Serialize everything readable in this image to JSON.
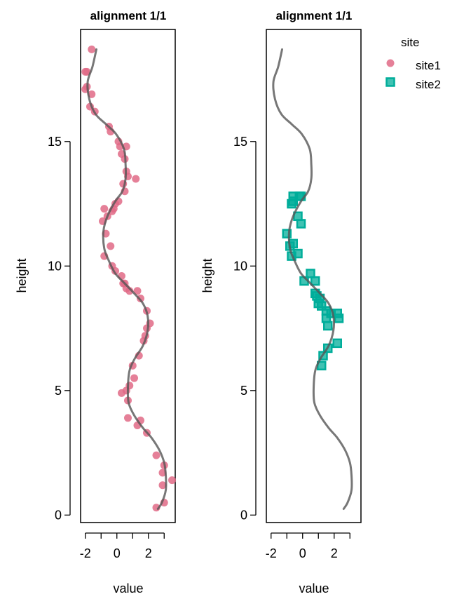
{
  "colors": {
    "site1": "#E16A86",
    "site2": "#00AD9A",
    "curve": "#555555"
  },
  "chart_data": [
    {
      "type": "scatter",
      "title": "alignment 1/1",
      "xlabel": "value",
      "ylabel": "height",
      "xlim": [
        -2.3,
        3.7
      ],
      "ylim": [
        -0.3,
        19.5
      ],
      "xticks": [
        -2,
        -1,
        0,
        1,
        2,
        3
      ],
      "xticklabels": [
        "-2",
        "",
        "0",
        "",
        "2",
        ""
      ],
      "yticks": [
        0,
        5,
        10,
        15
      ],
      "yticklabels": [
        "0",
        "5",
        "10",
        "15"
      ],
      "series": [
        {
          "name": "site1",
          "marker": "circle",
          "points": [
            [
              -1.6,
              18.7
            ],
            [
              -1.9,
              17.8
            ],
            [
              -2.0,
              17.8
            ],
            [
              -1.9,
              17.2
            ],
            [
              -2.0,
              17.1
            ],
            [
              -1.6,
              16.9
            ],
            [
              -1.7,
              16.4
            ],
            [
              -1.4,
              16.2
            ],
            [
              -0.5,
              15.6
            ],
            [
              -0.4,
              15.4
            ],
            [
              0.1,
              15.0
            ],
            [
              0.2,
              14.8
            ],
            [
              0.6,
              14.8
            ],
            [
              0.3,
              14.5
            ],
            [
              0.5,
              14.3
            ],
            [
              0.6,
              13.8
            ],
            [
              0.7,
              13.6
            ],
            [
              1.2,
              13.5
            ],
            [
              0.4,
              13.3
            ],
            [
              0.5,
              13.0
            ],
            [
              0.1,
              12.6
            ],
            [
              -0.1,
              12.5
            ],
            [
              -0.2,
              12.3
            ],
            [
              -0.8,
              12.3
            ],
            [
              -0.3,
              12.2
            ],
            [
              -0.6,
              12.0
            ],
            [
              -0.9,
              11.8
            ],
            [
              -0.7,
              11.3
            ],
            [
              -0.4,
              10.8
            ],
            [
              -0.8,
              10.4
            ],
            [
              -0.3,
              10.0
            ],
            [
              -0.1,
              9.8
            ],
            [
              0.3,
              9.6
            ],
            [
              0.4,
              9.3
            ],
            [
              0.5,
              9.3
            ],
            [
              0.6,
              9.1
            ],
            [
              0.8,
              9.0
            ],
            [
              1.3,
              9.0
            ],
            [
              1.5,
              8.7
            ],
            [
              1.9,
              8.2
            ],
            [
              2.1,
              7.7
            ],
            [
              1.9,
              7.5
            ],
            [
              1.8,
              7.2
            ],
            [
              1.7,
              7.0
            ],
            [
              1.4,
              6.4
            ],
            [
              1.0,
              6.0
            ],
            [
              1.1,
              5.5
            ],
            [
              0.8,
              5.2
            ],
            [
              0.6,
              5.0
            ],
            [
              0.3,
              4.9
            ],
            [
              0.7,
              4.6
            ],
            [
              1.5,
              3.8
            ],
            [
              1.3,
              3.6
            ],
            [
              0.7,
              3.9
            ],
            [
              1.9,
              3.3
            ],
            [
              2.5,
              2.4
            ],
            [
              3.0,
              2.0
            ],
            [
              2.9,
              1.7
            ],
            [
              3.5,
              1.4
            ],
            [
              2.9,
              1.2
            ],
            [
              3.0,
              0.5
            ],
            [
              2.5,
              0.3
            ]
          ]
        }
      ],
      "curve": [
        [
          -1.3,
          18.7
        ],
        [
          -1.55,
          18.0
        ],
        [
          -1.85,
          17.4
        ],
        [
          -1.75,
          16.7
        ],
        [
          -1.35,
          16.1
        ],
        [
          -0.7,
          15.7
        ],
        [
          -0.05,
          15.3
        ],
        [
          0.45,
          14.7
        ],
        [
          0.55,
          14.1
        ],
        [
          0.55,
          13.5
        ],
        [
          0.35,
          13.0
        ],
        [
          -0.1,
          12.6
        ],
        [
          -0.6,
          12.0
        ],
        [
          -0.85,
          11.4
        ],
        [
          -0.8,
          10.7
        ],
        [
          -0.5,
          10.2
        ],
        [
          -0.1,
          9.7
        ],
        [
          0.5,
          9.3
        ],
        [
          1.1,
          8.9
        ],
        [
          1.65,
          8.5
        ],
        [
          1.95,
          8.0
        ],
        [
          1.95,
          7.4
        ],
        [
          1.65,
          6.8
        ],
        [
          1.15,
          6.3
        ],
        [
          0.8,
          5.8
        ],
        [
          0.7,
          5.1
        ],
        [
          0.75,
          4.5
        ],
        [
          1.1,
          4.0
        ],
        [
          1.65,
          3.5
        ],
        [
          2.2,
          3.1
        ],
        [
          2.7,
          2.6
        ],
        [
          3.0,
          2.1
        ],
        [
          3.1,
          1.6
        ],
        [
          3.1,
          1.0
        ],
        [
          2.85,
          0.5
        ],
        [
          2.6,
          0.25
        ]
      ]
    },
    {
      "type": "scatter",
      "title": "alignment 1/1",
      "xlabel": "value",
      "ylabel": "height",
      "xlim": [
        -2.3,
        3.7
      ],
      "ylim": [
        -0.3,
        19.5
      ],
      "xticks": [
        -2,
        -1,
        0,
        1,
        2,
        3
      ],
      "xticklabels": [
        "-2",
        "",
        "0",
        "",
        "2",
        ""
      ],
      "yticks": [
        0,
        5,
        10,
        15
      ],
      "yticklabels": [
        "0",
        "5",
        "10",
        "15"
      ],
      "series": [
        {
          "name": "site2",
          "marker": "square",
          "points": [
            [
              -0.6,
              12.8
            ],
            [
              -0.2,
              12.8
            ],
            [
              -0.1,
              12.8
            ],
            [
              -0.6,
              12.6
            ],
            [
              -0.7,
              12.5
            ],
            [
              -0.3,
              12.0
            ],
            [
              -0.1,
              11.7
            ],
            [
              -1.0,
              11.3
            ],
            [
              -0.6,
              10.9
            ],
            [
              -0.8,
              10.8
            ],
            [
              -0.3,
              10.5
            ],
            [
              -0.7,
              10.4
            ],
            [
              0.5,
              9.7
            ],
            [
              0.8,
              9.4
            ],
            [
              0.1,
              9.4
            ],
            [
              0.8,
              8.9
            ],
            [
              0.9,
              8.8
            ],
            [
              1.1,
              8.7
            ],
            [
              1.0,
              8.5
            ],
            [
              1.2,
              8.4
            ],
            [
              1.5,
              8.2
            ],
            [
              2.2,
              8.1
            ],
            [
              1.8,
              8.1
            ],
            [
              2.3,
              7.9
            ],
            [
              1.5,
              7.9
            ],
            [
              1.6,
              7.6
            ],
            [
              2.2,
              6.9
            ],
            [
              1.6,
              6.7
            ],
            [
              1.3,
              6.4
            ],
            [
              1.2,
              6.0
            ]
          ]
        }
      ],
      "curve": [
        [
          -1.3,
          18.7
        ],
        [
          -1.55,
          18.0
        ],
        [
          -1.85,
          17.4
        ],
        [
          -1.75,
          16.7
        ],
        [
          -1.35,
          16.1
        ],
        [
          -0.7,
          15.7
        ],
        [
          -0.05,
          15.3
        ],
        [
          0.45,
          14.7
        ],
        [
          0.55,
          14.1
        ],
        [
          0.55,
          13.5
        ],
        [
          0.35,
          13.0
        ],
        [
          -0.1,
          12.6
        ],
        [
          -0.6,
          12.0
        ],
        [
          -0.85,
          11.4
        ],
        [
          -0.8,
          10.7
        ],
        [
          -0.5,
          10.2
        ],
        [
          -0.1,
          9.7
        ],
        [
          0.5,
          9.3
        ],
        [
          1.1,
          8.9
        ],
        [
          1.65,
          8.5
        ],
        [
          1.95,
          8.0
        ],
        [
          1.95,
          7.4
        ],
        [
          1.65,
          6.8
        ],
        [
          1.15,
          6.3
        ],
        [
          0.8,
          5.8
        ],
        [
          0.7,
          5.1
        ],
        [
          0.75,
          4.5
        ],
        [
          1.1,
          4.0
        ],
        [
          1.65,
          3.5
        ],
        [
          2.2,
          3.1
        ],
        [
          2.7,
          2.6
        ],
        [
          3.0,
          2.1
        ],
        [
          3.1,
          1.6
        ],
        [
          3.1,
          1.0
        ],
        [
          2.85,
          0.5
        ],
        [
          2.6,
          0.25
        ]
      ]
    }
  ],
  "legend": {
    "title": "site",
    "placement": "top-right",
    "items": [
      {
        "label": "site1",
        "marker": "circle",
        "color": "#E16A86"
      },
      {
        "label": "site2",
        "marker": "square",
        "color": "#00AD9A"
      }
    ]
  }
}
